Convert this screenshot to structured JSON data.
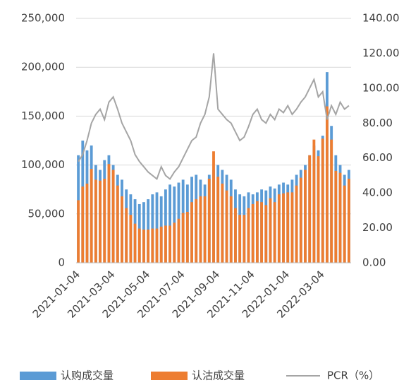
{
  "chart_data": {
    "type": "bar-line",
    "categories": [
      "2021-01-04",
      null,
      null,
      null,
      null,
      null,
      null,
      null,
      "2021-03-04",
      null,
      null,
      null,
      null,
      null,
      null,
      null,
      "2021-05-04",
      null,
      null,
      null,
      null,
      null,
      null,
      null,
      "2021-07-04",
      null,
      null,
      null,
      null,
      null,
      null,
      null,
      "2021-09-04",
      null,
      null,
      null,
      null,
      null,
      null,
      null,
      "2021-11-04",
      null,
      null,
      null,
      null,
      null,
      null,
      null,
      "2022-01-04",
      null,
      null,
      null,
      null,
      null,
      null,
      null,
      "2022-03-04",
      null,
      null,
      null,
      null,
      null,
      null
    ],
    "series": [
      {
        "name": "认购成交量",
        "color": "#5b9bd5",
        "kind": "bar",
        "values": [
          110000,
          125000,
          115000,
          120000,
          100000,
          95000,
          105000,
          110000,
          100000,
          90000,
          85000,
          75000,
          70000,
          65000,
          60000,
          62000,
          65000,
          70000,
          72000,
          68000,
          75000,
          80000,
          78000,
          82000,
          85000,
          80000,
          88000,
          90000,
          85000,
          80000,
          90000,
          95000,
          100000,
          95000,
          90000,
          85000,
          75000,
          70000,
          68000,
          72000,
          70000,
          72000,
          75000,
          74000,
          78000,
          76000,
          80000,
          82000,
          80000,
          85000,
          90000,
          95000,
          100000,
          110000,
          120000,
          115000,
          130000,
          195000,
          140000,
          110000,
          100000,
          90000,
          95000
        ]
      },
      {
        "name": "认沽成交量",
        "color": "#ed7d31",
        "kind": "bar",
        "values": [
          64000,
          78000,
          81000,
          96000,
          85000,
          84000,
          86000,
          101000,
          95000,
          79000,
          68000,
          56000,
          49000,
          40000,
          35000,
          34000,
          34000,
          35000,
          35000,
          37000,
          38000,
          38000,
          41000,
          45000,
          51000,
          52000,
          62000,
          65000,
          68000,
          68000,
          86000,
          114000,
          88000,
          81000,
          74000,
          68000,
          56000,
          49000,
          49000,
          56000,
          60000,
          63000,
          62000,
          59000,
          66000,
          62000,
          70000,
          71000,
          72000,
          72000,
          79000,
          87000,
          95000,
          110000,
          126000,
          109000,
          127000,
          160000,
          126000,
          94000,
          92000,
          79000,
          86000
        ]
      },
      {
        "name": "PCR（%）",
        "color": "#a5a5a5",
        "kind": "line",
        "axis": "y2",
        "values": [
          58,
          62,
          70,
          80,
          85,
          88,
          82,
          92,
          95,
          88,
          80,
          75,
          70,
          62,
          58,
          55,
          52,
          50,
          48,
          55,
          50,
          48,
          52,
          55,
          60,
          65,
          70,
          72,
          80,
          85,
          95,
          120,
          88,
          85,
          82,
          80,
          75,
          70,
          72,
          78,
          85,
          88,
          82,
          80,
          85,
          82,
          88,
          86,
          90,
          85,
          88,
          92,
          95,
          100,
          105,
          95,
          98,
          82,
          90,
          85,
          92,
          88,
          90
        ]
      }
    ],
    "ylim": [
      0,
      250000
    ],
    "yticks": [
      {
        "value": 0,
        "label": "0"
      },
      {
        "value": 50000,
        "label": "50,000"
      },
      {
        "value": 100000,
        "label": "100,000"
      },
      {
        "value": 150000,
        "label": "150,000"
      },
      {
        "value": 200000,
        "label": "200,000"
      },
      {
        "value": 250000,
        "label": "250,000"
      }
    ],
    "y2lim": [
      0,
      140
    ],
    "y2ticks": [
      {
        "value": 0,
        "label": "0.00"
      },
      {
        "value": 20,
        "label": "20.00"
      },
      {
        "value": 40,
        "label": "40.00"
      },
      {
        "value": 60,
        "label": "60.00"
      },
      {
        "value": 80,
        "label": "80.00"
      },
      {
        "value": 100,
        "label": "100.00"
      },
      {
        "value": 120,
        "label": "120.00"
      },
      {
        "value": 140,
        "label": "140.00"
      }
    ],
    "grid": true,
    "legend": "bottom"
  }
}
